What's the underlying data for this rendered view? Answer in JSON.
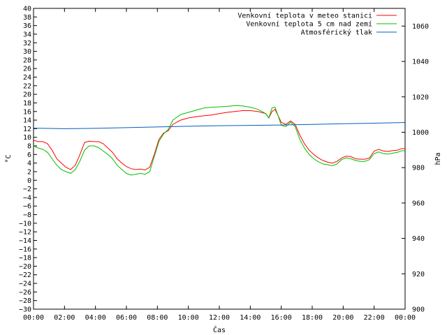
{
  "chart_data": {
    "type": "line",
    "xlabel": "Čas",
    "ylabel_left": "°C",
    "ylabel_right": "hPa",
    "x_ticks": [
      "00:00",
      "02:00",
      "04:00",
      "06:00",
      "08:00",
      "10:00",
      "12:00",
      "14:00",
      "16:00",
      "18:00",
      "20:00",
      "22:00",
      "00:00"
    ],
    "x_range_hours": [
      0,
      24
    ],
    "y_left_range": [
      -30,
      40
    ],
    "y_left_ticks": [
      -30,
      -28,
      -26,
      -24,
      -22,
      -20,
      -18,
      -16,
      -14,
      -12,
      -10,
      -8,
      -6,
      -4,
      -2,
      0,
      2,
      4,
      6,
      8,
      10,
      12,
      14,
      16,
      18,
      20,
      22,
      24,
      26,
      28,
      30,
      32,
      34,
      36,
      38,
      40
    ],
    "y_left_tick_labels": [
      "−30",
      "−28",
      "−26",
      "−24",
      "−22",
      "−20",
      "−18",
      "−16",
      "−14",
      "−12",
      "−10",
      "−8",
      "−6",
      "−4",
      "−2",
      "0",
      "2",
      "4",
      "6",
      "8",
      "10",
      "12",
      "14",
      "16",
      "18",
      "20",
      "22",
      "24",
      "26",
      "28",
      "30",
      "32",
      "34",
      "36",
      "38",
      "40"
    ],
    "y_right_range": [
      900,
      1070
    ],
    "y_right_ticks": [
      900,
      920,
      940,
      960,
      980,
      1000,
      1020,
      1040,
      1060
    ],
    "legend_position": "top-right",
    "grid": false,
    "series": [
      {
        "name": "Venkovní teplota v meteo stanici",
        "color": "#ff0000",
        "axis": "left",
        "x": [
          0,
          0.3,
          0.6,
          0.9,
          1.2,
          1.5,
          1.8,
          2.1,
          2.4,
          2.7,
          3.0,
          3.3,
          3.6,
          3.9,
          4.2,
          4.5,
          4.8,
          5.1,
          5.4,
          5.7,
          6.0,
          6.3,
          6.6,
          6.9,
          7.2,
          7.5,
          7.8,
          8.1,
          8.4,
          8.7,
          9.0,
          9.5,
          10.0,
          10.5,
          11.0,
          11.5,
          12.0,
          12.5,
          13.0,
          13.5,
          14.0,
          14.5,
          15.0,
          15.2,
          15.4,
          15.6,
          15.8,
          16.0,
          16.3,
          16.6,
          16.9,
          17.2,
          17.5,
          17.8,
          18.1,
          18.4,
          18.7,
          19.0,
          19.3,
          19.6,
          19.9,
          20.2,
          20.5,
          20.8,
          21.1,
          21.4,
          21.7,
          22.0,
          22.3,
          22.6,
          22.9,
          23.2,
          23.5,
          23.8,
          24.0
        ],
        "y": [
          9.3,
          9.0,
          9.0,
          8.5,
          7.0,
          5.0,
          4.0,
          3.0,
          2.5,
          3.5,
          6.0,
          8.8,
          9.1,
          9.0,
          9.0,
          8.5,
          7.5,
          6.5,
          5.0,
          4.0,
          3.2,
          2.7,
          2.5,
          2.6,
          2.4,
          3.0,
          6.0,
          9.5,
          11.0,
          11.5,
          13.0,
          14.0,
          14.5,
          14.8,
          15.0,
          15.2,
          15.5,
          15.8,
          16.0,
          16.2,
          16.2,
          16.0,
          15.5,
          14.5,
          16.0,
          16.5,
          15.0,
          13.5,
          13.0,
          13.8,
          13.0,
          10.5,
          8.5,
          7.0,
          6.0,
          5.2,
          4.6,
          4.2,
          4.0,
          4.4,
          5.2,
          5.6,
          5.5,
          5.0,
          4.9,
          4.9,
          5.2,
          6.8,
          7.2,
          6.8,
          6.7,
          6.9,
          7.0,
          7.4,
          7.3
        ]
      },
      {
        "name": "Venkovní teplota 5 cm nad zemí",
        "color": "#00c000",
        "axis": "left",
        "x": [
          0,
          0.3,
          0.6,
          0.9,
          1.2,
          1.5,
          1.8,
          2.1,
          2.4,
          2.7,
          3.0,
          3.3,
          3.6,
          3.9,
          4.2,
          4.5,
          4.8,
          5.1,
          5.4,
          5.7,
          6.0,
          6.3,
          6.6,
          6.9,
          7.2,
          7.5,
          7.8,
          8.1,
          8.4,
          8.7,
          9.0,
          9.5,
          10.0,
          10.5,
          11.0,
          11.5,
          12.0,
          12.5,
          13.0,
          13.5,
          14.0,
          14.5,
          15.0,
          15.2,
          15.4,
          15.6,
          15.8,
          16.0,
          16.3,
          16.6,
          16.9,
          17.2,
          17.5,
          17.8,
          18.1,
          18.4,
          18.7,
          19.0,
          19.3,
          19.6,
          19.9,
          20.2,
          20.5,
          20.8,
          21.1,
          21.4,
          21.7,
          22.0,
          22.3,
          22.6,
          22.9,
          23.2,
          23.5,
          23.8,
          24.0
        ],
        "y": [
          8.0,
          7.5,
          7.2,
          6.5,
          5.0,
          3.5,
          2.5,
          2.0,
          1.6,
          2.5,
          4.5,
          7.0,
          8.0,
          8.0,
          7.6,
          6.8,
          6.0,
          5.0,
          3.5,
          2.5,
          1.6,
          1.2,
          1.4,
          1.6,
          1.4,
          2.0,
          5.5,
          9.0,
          10.8,
          11.8,
          14.0,
          15.3,
          15.8,
          16.3,
          16.8,
          17.0,
          17.1,
          17.2,
          17.4,
          17.3,
          17.0,
          16.5,
          15.5,
          14.5,
          16.8,
          17.0,
          15.0,
          12.8,
          12.5,
          13.5,
          12.5,
          9.5,
          7.5,
          6.0,
          5.0,
          4.3,
          3.8,
          3.6,
          3.4,
          3.8,
          4.8,
          5.2,
          5.0,
          4.6,
          4.4,
          4.4,
          4.8,
          6.2,
          6.6,
          6.2,
          6.1,
          6.3,
          6.5,
          6.9,
          6.8
        ]
      },
      {
        "name": "Atmosférický tlak",
        "color": "#0060c0",
        "axis": "right",
        "x": [
          0,
          2,
          4,
          6,
          8,
          10,
          12,
          14,
          16,
          18,
          20,
          22,
          24
        ],
        "y": [
          1002.3,
          1002.0,
          1002.2,
          1002.6,
          1003.0,
          1003.4,
          1003.7,
          1003.9,
          1004.1,
          1004.4,
          1004.8,
          1005.1,
          1005.5
        ]
      }
    ]
  }
}
